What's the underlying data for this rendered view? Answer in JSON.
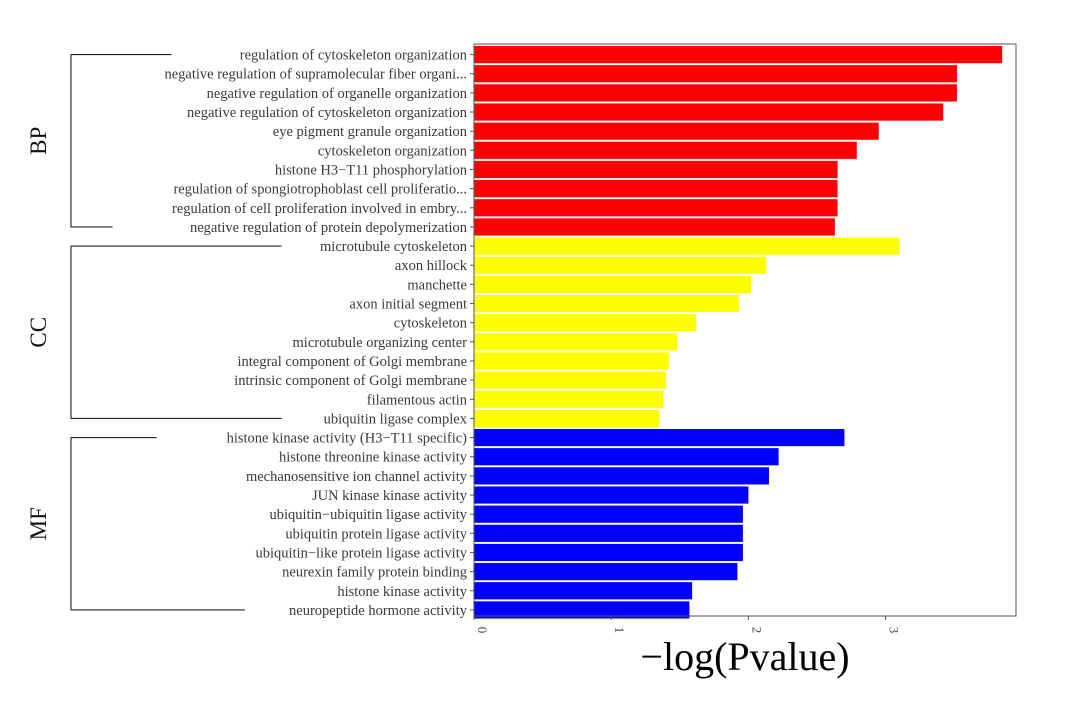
{
  "chart_data": {
    "type": "bar",
    "orientation": "horizontal",
    "xlabel": "−log(Pvalue)",
    "ylabel": "",
    "xlim": [
      0,
      3.9
    ],
    "x_ticks": [
      "0",
      "1",
      "2",
      "3"
    ],
    "x_tick_values": [
      0,
      1,
      2,
      3
    ],
    "grid": false,
    "series": [
      {
        "name": "BP",
        "color": "#ff0000",
        "categories": [
          "regulation of cytoskeleton organization",
          "negative regulation of supramolecular fiber organi...",
          "negative regulation of organelle organization",
          "negative regulation of cytoskeleton organization",
          "eye pigment granule organization",
          "cytoskeleton organization",
          "histone H3−T11 phosphorylation",
          "regulation of spongiotrophoblast cell proliferatio...",
          "regulation of cell proliferation involved in embry...",
          "negative regulation of protein depolymerization"
        ],
        "values": [
          3.85,
          3.52,
          3.52,
          3.42,
          2.95,
          2.79,
          2.65,
          2.65,
          2.65,
          2.63
        ]
      },
      {
        "name": "CC",
        "color": "#ffff00",
        "categories": [
          "microtubule cytoskeleton",
          "axon hillock",
          "manchette",
          "axon initial segment",
          "cytoskeleton",
          "microtubule organizing center",
          "integral component of Golgi membrane",
          "intrinsic component of Golgi membrane",
          "filamentous actin",
          "ubiquitin ligase complex"
        ],
        "values": [
          3.1,
          2.13,
          2.02,
          1.93,
          1.62,
          1.48,
          1.42,
          1.4,
          1.38,
          1.35
        ]
      },
      {
        "name": "MF",
        "color": "#0000ff",
        "categories": [
          "histone kinase activity (H3−T11 specific)",
          "histone threonine kinase activity",
          "mechanosensitive ion channel activity",
          "JUN kinase kinase activity",
          "ubiquitin−ubiquitin ligase activity",
          "ubiquitin protein ligase activity",
          "ubiquitin−like protein ligase activity",
          "neurexin family protein binding",
          "histone kinase activity",
          "neuropeptide hormone activity"
        ],
        "values": [
          2.7,
          2.22,
          2.15,
          2.0,
          1.96,
          1.96,
          1.96,
          1.92,
          1.59,
          1.57
        ]
      }
    ]
  }
}
